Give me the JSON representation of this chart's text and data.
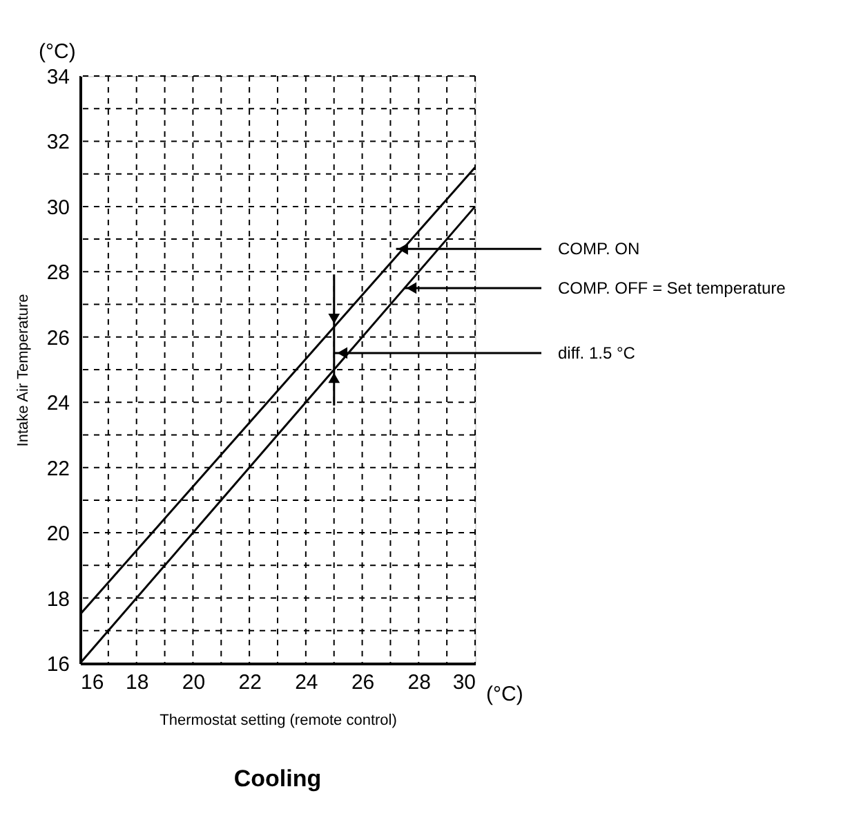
{
  "chart_data": {
    "type": "line",
    "title": "Cooling",
    "xlabel": "Thermostat setting (remote control)",
    "ylabel": "Intake Air Temperature",
    "x": [
      16,
      30
    ],
    "series": [
      {
        "color": "#000000",
        "values": [
          17.5,
          31.2
        ]
      },
      {
        "color": "#000000",
        "values": [
          16,
          30
        ]
      }
    ],
    "xlim": [
      16,
      30
    ],
    "ylim": [
      16,
      34
    ],
    "xticks": [
      16,
      {
        "value": 17,
        "label": null
      },
      18,
      {
        "value": 19,
        "label": null
      },
      20,
      {
        "value": 21,
        "label": null
      },
      22,
      {
        "value": 23,
        "label": null
      },
      24,
      {
        "value": 25,
        "label": null
      },
      26,
      {
        "value": 27,
        "label": null
      },
      28,
      {
        "value": 29,
        "label": null
      },
      30
    ],
    "yticks": [
      16,
      {
        "value": 17,
        "label": null
      },
      18,
      {
        "value": 19,
        "label": null
      },
      20,
      {
        "value": 21,
        "label": null
      },
      22,
      {
        "value": 23,
        "label": null
      },
      24,
      {
        "value": 25,
        "label": null
      },
      26,
      {
        "value": 27,
        "label": null
      },
      28,
      {
        "value": 29,
        "label": null
      },
      30,
      {
        "value": 31,
        "label": null
      },
      32,
      {
        "value": 33,
        "label": null
      },
      34
    ],
    "grid": true,
    "marker": "none",
    "line_style": "solid",
    "annotations": [
      "(°C)",
      "(°C)",
      {
        "text": "COMP. ON",
        "x": 27.2,
        "y": 28.7
      },
      {
        "text": "COMP. OFF = Set temperature",
        "x": 27.5,
        "y": 27.5
      },
      "diff. 1.5 °C"
    ]
  }
}
